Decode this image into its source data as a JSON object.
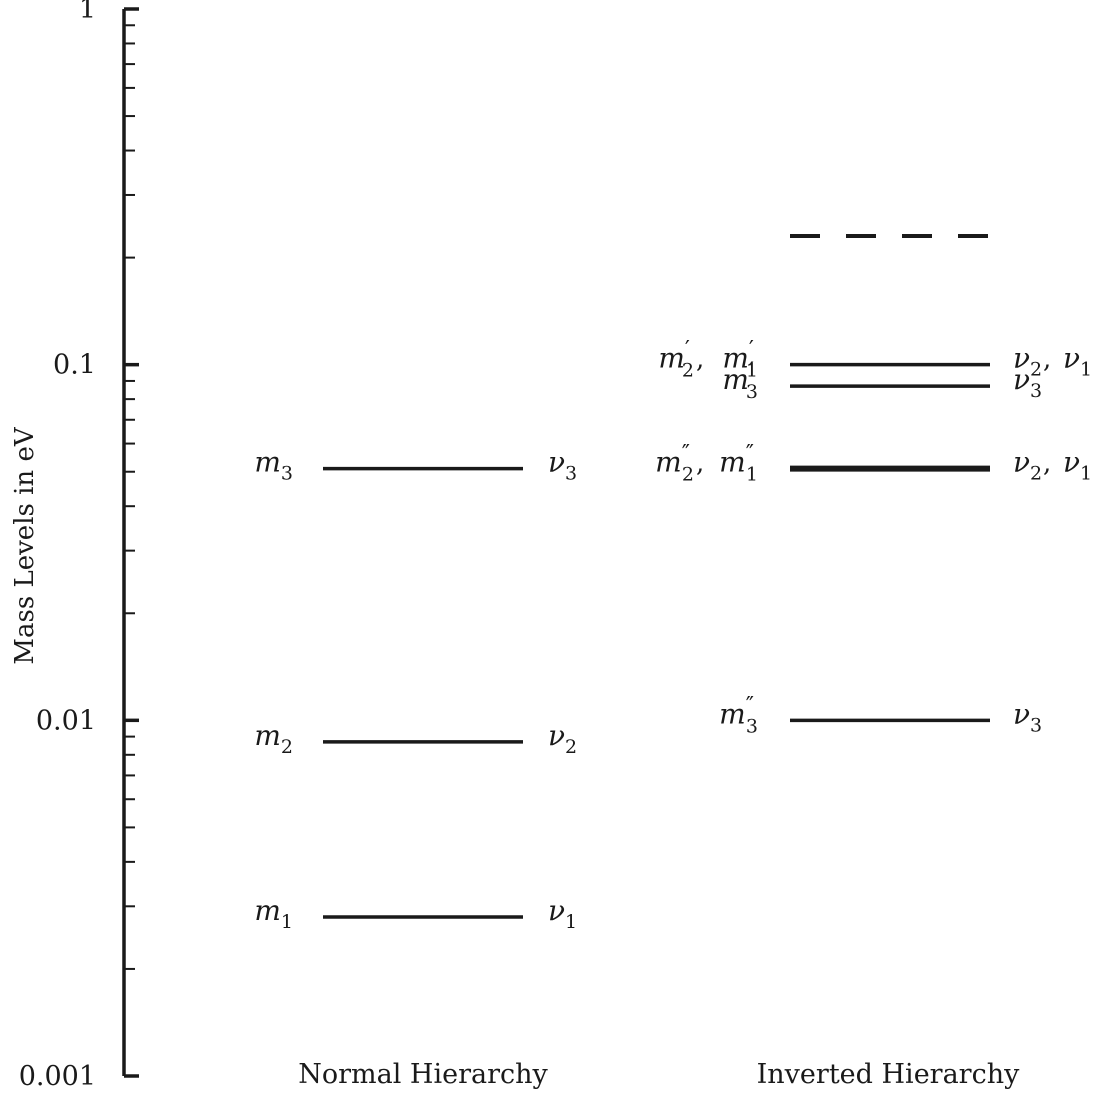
{
  "figure": {
    "y_axis_label": "Mass Levels in eV",
    "normal_title": "Normal Hierarchy",
    "inverted_title": "Inverted Hierarchy"
  },
  "chart_data": {
    "type": "level-diagram",
    "y_scale": "log",
    "ylim": [
      0.001,
      1
    ],
    "ylabel": "Mass Levels in eV",
    "y_ticks": [
      {
        "value": 0.001,
        "label": "0.001"
      },
      {
        "value": 0.01,
        "label": "0.01"
      },
      {
        "value": 0.1,
        "label": "0.1"
      },
      {
        "value": 1,
        "label": "1"
      }
    ],
    "groups": [
      {
        "id": "normal",
        "title": "Normal Hierarchy",
        "levels": [
          {
            "id": "nh-m3",
            "value": 0.051,
            "style": "solid",
            "weight": "normal",
            "left": [
              {
                "sym": "m",
                "sub": "3"
              }
            ],
            "right": [
              {
                "sym": "ν",
                "sub": "3"
              }
            ]
          },
          {
            "id": "nh-m2",
            "value": 0.0087,
            "style": "solid",
            "weight": "normal",
            "left": [
              {
                "sym": "m",
                "sub": "2"
              }
            ],
            "right": [
              {
                "sym": "ν",
                "sub": "2"
              }
            ]
          },
          {
            "id": "nh-m1",
            "value": 0.0028,
            "style": "solid",
            "weight": "normal",
            "left": [
              {
                "sym": "m",
                "sub": "1"
              }
            ],
            "right": [
              {
                "sym": "ν",
                "sub": "1"
              }
            ]
          }
        ]
      },
      {
        "id": "inverted",
        "title": "Inverted Hierarchy",
        "levels": [
          {
            "id": "ih-dashed",
            "value": 0.23,
            "style": "dashed",
            "weight": "normal",
            "left": [],
            "right": []
          },
          {
            "id": "ih-m21p",
            "value": 0.1,
            "style": "solid",
            "weight": "normal",
            "left": [
              {
                "sym": "m",
                "prime": "′",
                "sub": "2"
              },
              {
                "sym": "m",
                "prime": "′",
                "sub": "1"
              }
            ],
            "right": [
              {
                "sym": "ν",
                "sub": "2"
              },
              {
                "sym": "ν",
                "sub": "1"
              }
            ]
          },
          {
            "id": "ih-m3p",
            "value": 0.087,
            "style": "solid",
            "weight": "normal",
            "left": [
              {
                "sym": "m",
                "prime": "′",
                "sub": "3"
              }
            ],
            "right": [
              {
                "sym": "ν",
                "sub": "3"
              }
            ]
          },
          {
            "id": "ih-m21pp",
            "value": 0.051,
            "style": "solid",
            "weight": "bold",
            "left": [
              {
                "sym": "m",
                "prime": "″",
                "sub": "2"
              },
              {
                "sym": "m",
                "prime": "″",
                "sub": "1"
              }
            ],
            "right": [
              {
                "sym": "ν",
                "sub": "2"
              },
              {
                "sym": "ν",
                "sub": "1"
              }
            ]
          },
          {
            "id": "ih-m3pp",
            "value": 0.01,
            "style": "solid",
            "weight": "normal",
            "left": [
              {
                "sym": "m",
                "prime": "″",
                "sub": "3"
              }
            ],
            "right": [
              {
                "sym": "ν",
                "sub": "3"
              }
            ]
          }
        ]
      }
    ],
    "colors": {
      "ink": "#1a1a1a"
    }
  }
}
